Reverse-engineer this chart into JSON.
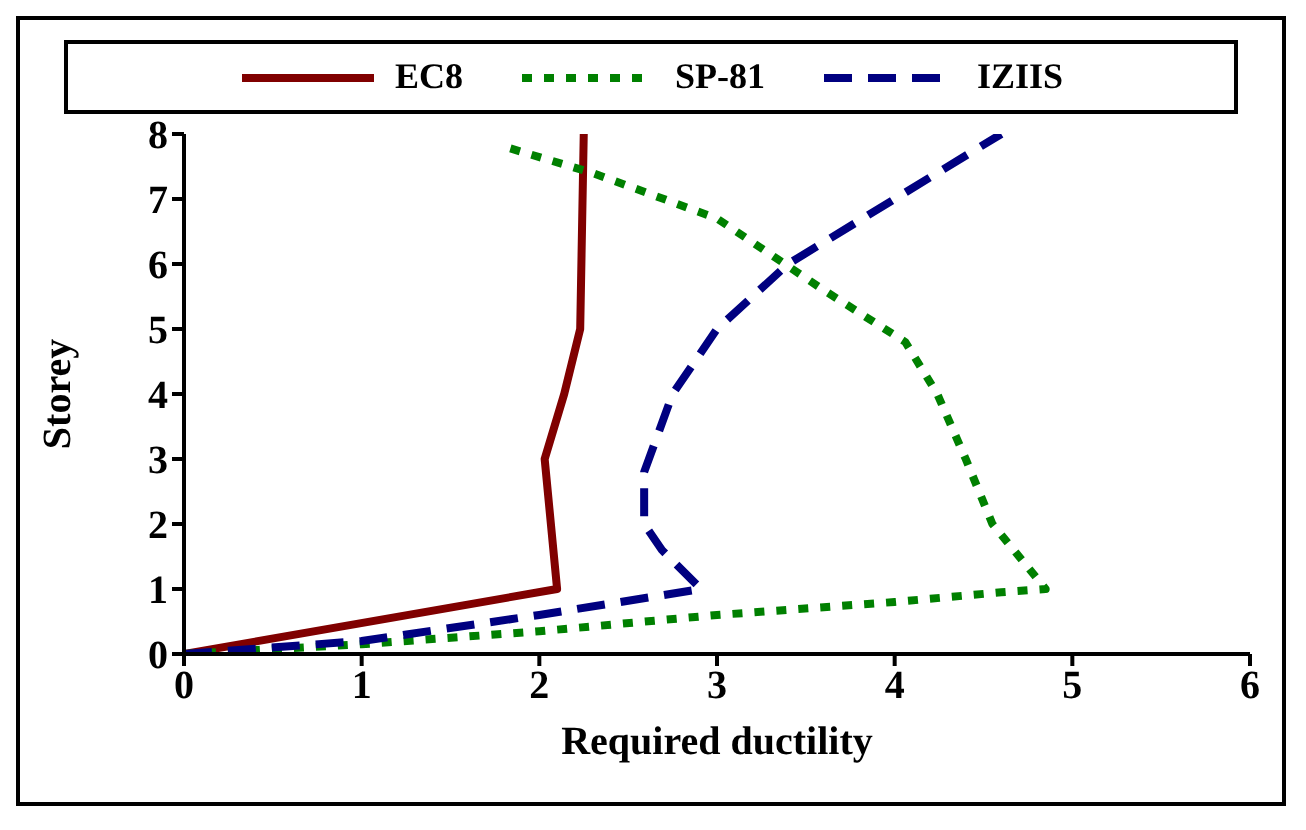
{
  "chart_data": {
    "type": "line",
    "xlabel": "Required ductility",
    "ylabel": "Storey",
    "xlim": [
      0,
      6
    ],
    "xticks": [
      0,
      1,
      2,
      3,
      4,
      5,
      6
    ],
    "ylim": [
      0,
      8
    ],
    "yticks": [
      0,
      1,
      2,
      3,
      4,
      5,
      6,
      7,
      8
    ],
    "legend": "top",
    "marker": "none",
    "grid": false,
    "series": [
      {
        "name": "EC8",
        "color": "#800000",
        "line_style": "solid",
        "x": [
          0,
          2.1,
          2.03,
          2.14,
          2.23,
          2.25
        ],
        "values": [
          0,
          1,
          3,
          4,
          5,
          8
        ]
      },
      {
        "name": "SP-81",
        "color": "#008000",
        "line_style": "dotted",
        "x": [
          0,
          1,
          2,
          3,
          4,
          4.6,
          4.85,
          4.55,
          4.4,
          4.24,
          4.06,
          3.6,
          3.0,
          2.3,
          1.81
        ],
        "values": [
          0,
          0.15,
          0.35,
          0.6,
          0.8,
          0.95,
          1,
          2,
          3,
          4,
          4.8,
          5.6,
          6.7,
          7.4,
          7.8
        ]
      },
      {
        "name": "IZIIS",
        "color": "#000080",
        "line_style": "dashed",
        "x": [
          0,
          1,
          2,
          2.91,
          2.69,
          2.59,
          2.59,
          2.75,
          3.0,
          3.4,
          4.0,
          4.6
        ],
        "values": [
          0,
          0.2,
          0.6,
          1,
          1.6,
          2,
          2.8,
          4,
          5,
          6,
          7,
          8
        ]
      }
    ]
  }
}
